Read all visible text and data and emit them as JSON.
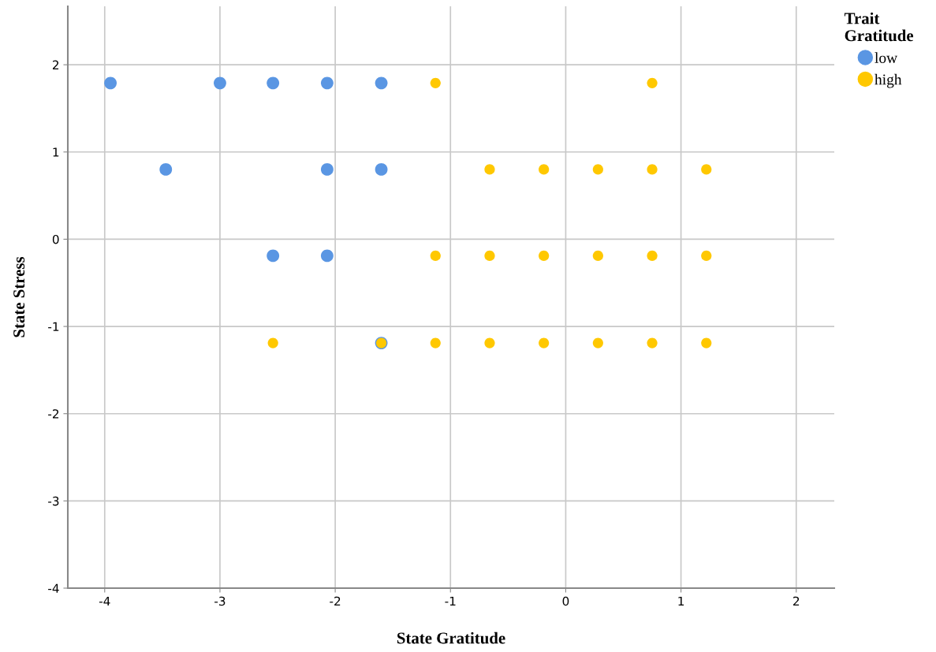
{
  "chart_data": {
    "type": "scatter",
    "xlabel": "State Gratitude",
    "ylabel": "State Stress",
    "legend_title": "Trait\nGratitude",
    "xlim": [
      -4.32,
      2.33
    ],
    "ylim": [
      -4,
      2.67
    ],
    "xticks": [
      -4,
      -3,
      -2,
      -1,
      0,
      1,
      2
    ],
    "yticks": [
      -4,
      -3,
      -2,
      -1,
      0,
      1,
      2
    ],
    "grid": true,
    "legend": "top right",
    "marker": "circle",
    "series": [
      {
        "name": "low",
        "color": "#5a96e3",
        "x": [
          -3.95,
          -3.0,
          -2.54,
          -2.07,
          -1.6,
          -3.47,
          -2.07,
          -1.6,
          -2.54,
          -2.07,
          -1.6
        ],
        "values": [
          1.79,
          1.79,
          1.79,
          1.79,
          1.79,
          0.8,
          0.8,
          0.8,
          -0.19,
          -0.19,
          -1.19
        ]
      },
      {
        "name": "high",
        "color": "#ffc800",
        "x": [
          -1.13,
          0.75,
          -0.66,
          -0.19,
          0.28,
          0.75,
          1.22,
          -1.13,
          -0.66,
          -0.19,
          0.28,
          0.75,
          1.22,
          -2.54,
          -1.6,
          -1.13,
          -0.66,
          -0.19,
          0.28,
          0.75,
          1.22
        ],
        "values": [
          1.79,
          1.79,
          0.8,
          0.8,
          0.8,
          0.8,
          0.8,
          -0.19,
          -0.19,
          -0.19,
          -0.19,
          -0.19,
          -0.19,
          -1.19,
          -1.19,
          -1.19,
          -1.19,
          -1.19,
          -1.19,
          -1.19,
          -1.19
        ]
      }
    ]
  }
}
